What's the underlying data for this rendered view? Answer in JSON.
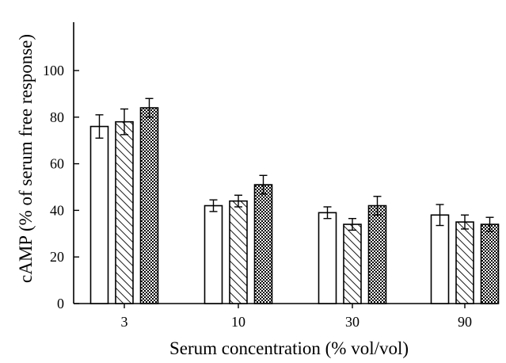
{
  "chart_data": {
    "type": "bar",
    "title": "",
    "xlabel": "Serum concentration (% vol/vol)",
    "ylabel": "cAMP (% of serum free response)",
    "categories": [
      "3",
      "10",
      "30",
      "90"
    ],
    "ylim": [
      0,
      100
    ],
    "yticks": [
      0,
      20,
      40,
      60,
      80,
      100
    ],
    "grid": false,
    "legend": "none",
    "series": [
      {
        "fill": "open",
        "values": [
          76,
          42,
          39,
          38
        ],
        "errors": [
          5,
          2.5,
          2.5,
          4.5
        ]
      },
      {
        "fill": "diagonal-hatch",
        "values": [
          78,
          44,
          34,
          35
        ],
        "errors": [
          5.5,
          2.5,
          2.5,
          3
        ]
      },
      {
        "fill": "crosshatch",
        "values": [
          84,
          51,
          42,
          34
        ],
        "errors": [
          4,
          4,
          4,
          3
        ]
      }
    ]
  }
}
